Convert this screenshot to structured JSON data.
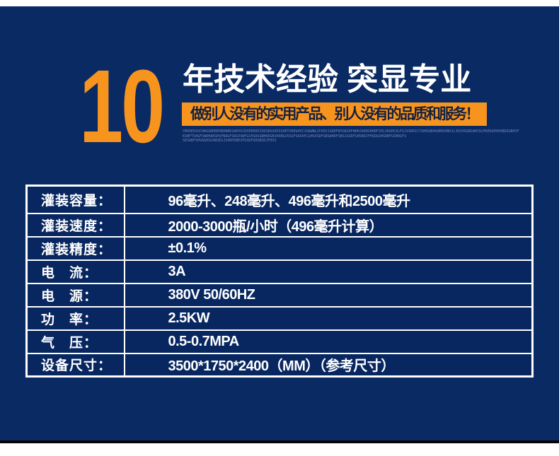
{
  "colors": {
    "background_navy": "#0a2a64",
    "cell_navy": "#082760",
    "accent_orange": "#f7941e",
    "table_border_white": "#ffffff",
    "banner_text_navy": "#132142",
    "micro_text_blue": "#7e90c2"
  },
  "header": {
    "years_number": "10",
    "title": "年技术经验 突显专业",
    "banner": "做别人没有的实用产品、别人没有的品质和服务！",
    "micro_text_lines": [
      "CMXDEDSOCHWSGBHBERNDNBKSAHVSCDXEEHOP2XDSBSGHVSSORTVREGHVCJGKWNLZCHXVJGDEFWYGBJDFWHHJAEBSHHDFZXLSHGHCXLFGJVSDKICYSHDGBHAGBEKOBHJLJKCHXGBSAHCOLMSEDGHVHXBDOGBHJF",
      "KSNFTSHGFSWRHAEGHSFNAGFSDGVSWFGCHSASGBHKEGBSHXBGCKSGFSASKFLGHSVSDFGBSWHDFSBSJGSDFGHSBDJFHSDGSHSDBFGSHDGFS",
      "SESABFVHSAGHSGSWSEGJSADHSBESFGSDFGHSBSDJFHSS"
    ]
  },
  "table": {
    "rows": [
      {
        "label": "灌装容量：",
        "value": "96毫升、248毫升、496毫升和2500毫升"
      },
      {
        "label": "灌装速度：",
        "value": "2000-3000瓶/小时（496毫升计算）"
      },
      {
        "label": "灌装精度：",
        "value": "±0.1%"
      },
      {
        "label": "电　流：",
        "value": "3A"
      },
      {
        "label": "电　源：",
        "value": "380V 50/60HZ"
      },
      {
        "label": "功　率：",
        "value": "2.5KW"
      },
      {
        "label": "气　压：",
        "value": "0.5-0.7MPA"
      },
      {
        "label": "设备尺寸：",
        "value": "3500*1750*2400（MM）（参考尺寸）"
      }
    ]
  }
}
